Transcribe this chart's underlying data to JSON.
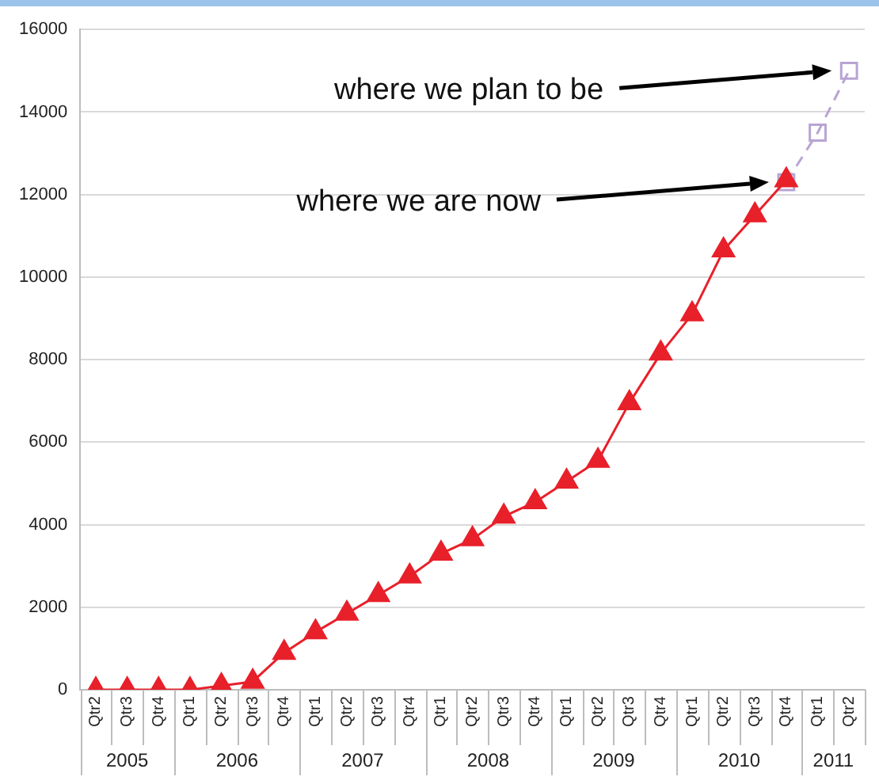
{
  "chart_data": {
    "type": "line",
    "categories": [
      "Qtr2",
      "Qtr3",
      "Qtr4",
      "Qtr1",
      "Qtr2",
      "Qtr3",
      "Qtr4",
      "Qtr1",
      "Qtr2",
      "Qtr3",
      "Qtr4",
      "Qtr1",
      "Qtr2",
      "Qtr3",
      "Qtr4",
      "Qtr1",
      "Qtr2",
      "Qtr3",
      "Qtr4",
      "Qtr1",
      "Qtr2",
      "Qtr3",
      "Qtr4",
      "Qtr1",
      "Qtr2"
    ],
    "series": [
      {
        "color": "#e8202a",
        "marker": "triangle",
        "line_style": "solid",
        "values": [
          0,
          0,
          0,
          0,
          100,
          200,
          900,
          1400,
          1850,
          2300,
          2750,
          3300,
          3650,
          4200,
          4550,
          5050,
          5550,
          6950,
          8150,
          9100,
          10650,
          11500,
          12350,
          null,
          null
        ]
      },
      {
        "color": "#b8a4d4",
        "marker": "square",
        "line_style": "dashed",
        "values": [
          null,
          null,
          null,
          null,
          null,
          null,
          null,
          null,
          null,
          null,
          null,
          null,
          null,
          null,
          null,
          null,
          null,
          null,
          null,
          null,
          null,
          null,
          12300,
          13500,
          15000
        ]
      }
    ],
    "ylim": [
      0,
      16000
    ],
    "yticks": [
      0,
      2000,
      4000,
      6000,
      8000,
      10000,
      12000,
      14000,
      16000
    ],
    "grid": "y",
    "legend": false,
    "annotations": [
      "where we plan to be",
      "where we are now",
      "2005",
      "2006",
      "2007",
      "2008",
      "2009",
      "2010",
      "2011"
    ]
  }
}
